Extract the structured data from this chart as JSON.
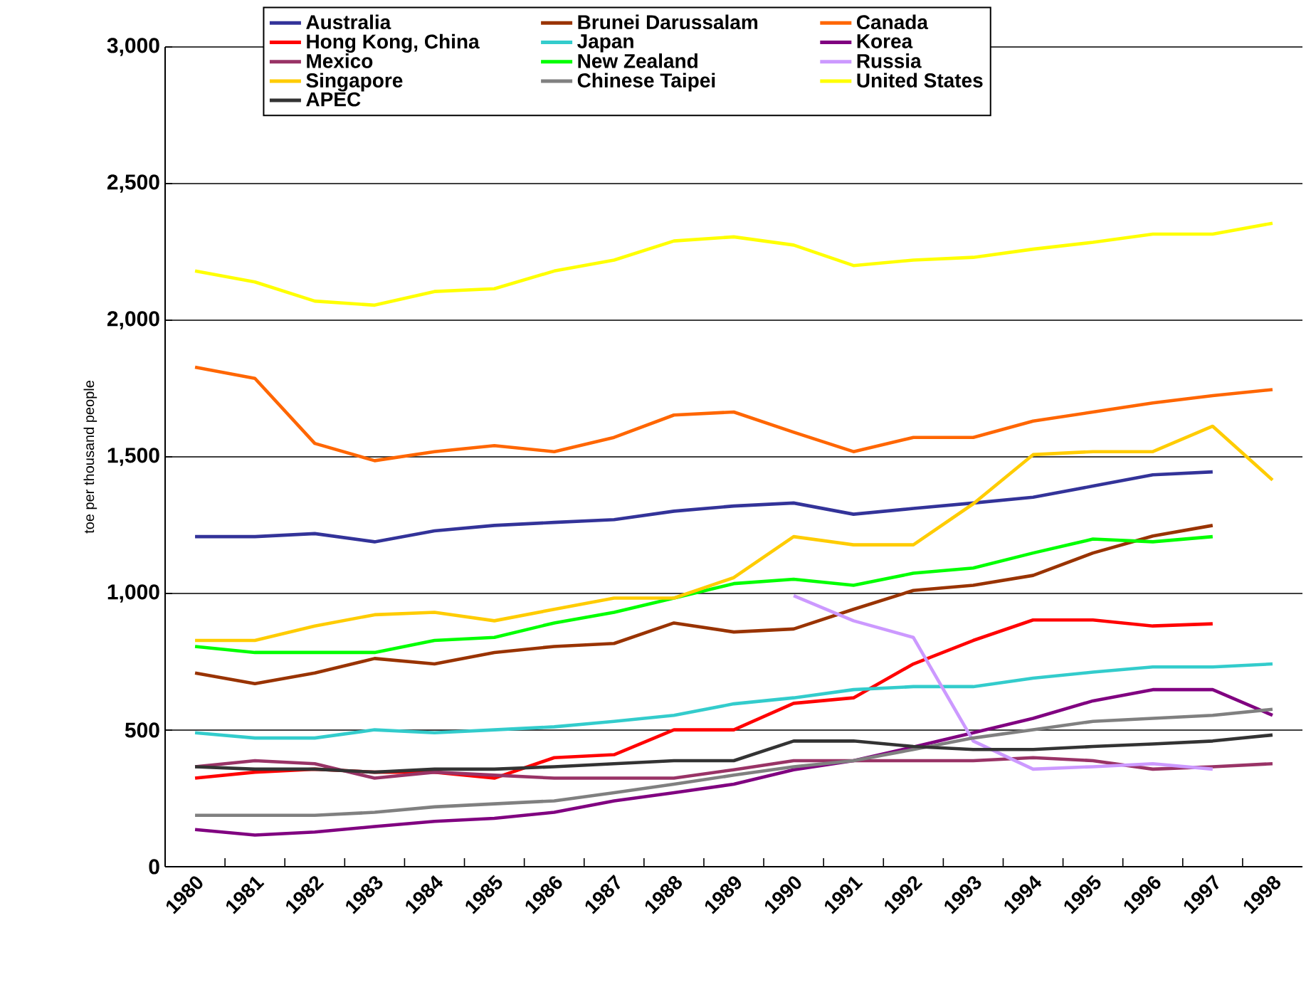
{
  "chart_data": {
    "type": "line",
    "ylabel": "toe per thousand people",
    "categories": [
      "1980",
      "1981",
      "1982",
      "1983",
      "1984",
      "1985",
      "1986",
      "1987",
      "1988",
      "1989",
      "1990",
      "1991",
      "1992",
      "1993",
      "1994",
      "1995",
      "1996",
      "1997",
      "1998"
    ],
    "ylim": [
      0,
      3000
    ],
    "yticks": [
      0,
      500,
      {
        "value": 1000,
        "label": "1,000"
      },
      {
        "value": 1500,
        "label": "1,500"
      },
      {
        "value": 2000,
        "label": "2,000"
      },
      {
        "value": 2500,
        "label": "2,500"
      },
      {
        "value": 3000,
        "label": "3,000"
      }
    ],
    "grid": "y",
    "legend": "top",
    "series": [
      {
        "name": "Australia",
        "color": "#333399",
        "values": [
          1208,
          1208,
          1219,
          1189,
          1229,
          1249,
          1260,
          1270,
          1301,
          1320,
          1331,
          1290,
          1311,
          1331,
          1352,
          1393,
          1434,
          1445,
          null
        ]
      },
      {
        "name": "Brunei Darussalam",
        "color": "#993300",
        "values": [
          709,
          670,
          709,
          762,
          742,
          784,
          806,
          817,
          892,
          859,
          870,
          942,
          1011,
          1030,
          1066,
          1148,
          1210,
          1249,
          null
        ]
      },
      {
        "name": "Canada",
        "color": "#ff6600",
        "values": [
          1828,
          1787,
          1549,
          1486,
          1519,
          1541,
          1519,
          1571,
          1653,
          1664,
          1590,
          1519,
          1571,
          1571,
          1631,
          1664,
          1697,
          1724,
          1746
        ]
      },
      {
        "name": "Hong Kong, China",
        "color": "#ff0000",
        "values": [
          324,
          346,
          357,
          346,
          346,
          324,
          399,
          410,
          501,
          501,
          598,
          618,
          742,
          828,
          903,
          903,
          881,
          889,
          null
        ]
      },
      {
        "name": "Japan",
        "color": "#33cccc",
        "values": [
          490,
          471,
          471,
          501,
          490,
          501,
          512,
          532,
          554,
          596,
          618,
          648,
          659,
          659,
          690,
          712,
          731,
          731,
          742
        ]
      },
      {
        "name": "Korea",
        "color": "#800080",
        "values": [
          136,
          116,
          127,
          147,
          166,
          177,
          199,
          241,
          271,
          302,
          355,
          388,
          438,
          490,
          543,
          607,
          648,
          648,
          554
        ]
      },
      {
        "name": "Mexico",
        "color": "#993366",
        "values": [
          366,
          388,
          377,
          324,
          346,
          335,
          324,
          324,
          324,
          355,
          388,
          388,
          388,
          388,
          399,
          388,
          357,
          366,
          377
        ]
      },
      {
        "name": "New Zealand",
        "color": "#00ff00",
        "values": [
          806,
          784,
          784,
          784,
          828,
          839,
          892,
          931,
          983,
          1036,
          1052,
          1030,
          1074,
          1093,
          1148,
          1199,
          1189,
          1208,
          null
        ]
      },
      {
        "name": "Russia",
        "color": "#cc99ff",
        "values": [
          null,
          null,
          null,
          null,
          null,
          null,
          null,
          null,
          null,
          null,
          992,
          900,
          839,
          460,
          357,
          366,
          377,
          357,
          null
        ]
      },
      {
        "name": "Singapore",
        "color": "#ffcc00",
        "values": [
          828,
          828,
          881,
          922,
          931,
          900,
          942,
          983,
          983,
          1058,
          1208,
          1178,
          1178,
          1328,
          1508,
          1519,
          1519,
          1612,
          1415
        ]
      },
      {
        "name": "Chinese Taipei",
        "color": "#808080",
        "values": [
          188,
          188,
          188,
          199,
          219,
          230,
          241,
          271,
          302,
          335,
          366,
          388,
          429,
          471,
          501,
          532,
          543,
          554,
          576
        ]
      },
      {
        "name": "United States",
        "color": "#ffff00",
        "values": [
          2180,
          2140,
          2070,
          2055,
          2105,
          2115,
          2180,
          2220,
          2290,
          2305,
          2275,
          2200,
          2220,
          2230,
          2260,
          2285,
          2315,
          2315,
          2355
        ]
      },
      {
        "name": "APEC",
        "color": "#333333",
        "values": [
          366,
          357,
          357,
          346,
          357,
          357,
          366,
          377,
          388,
          388,
          460,
          460,
          440,
          429,
          429,
          440,
          449,
          460,
          482
        ]
      }
    ]
  }
}
